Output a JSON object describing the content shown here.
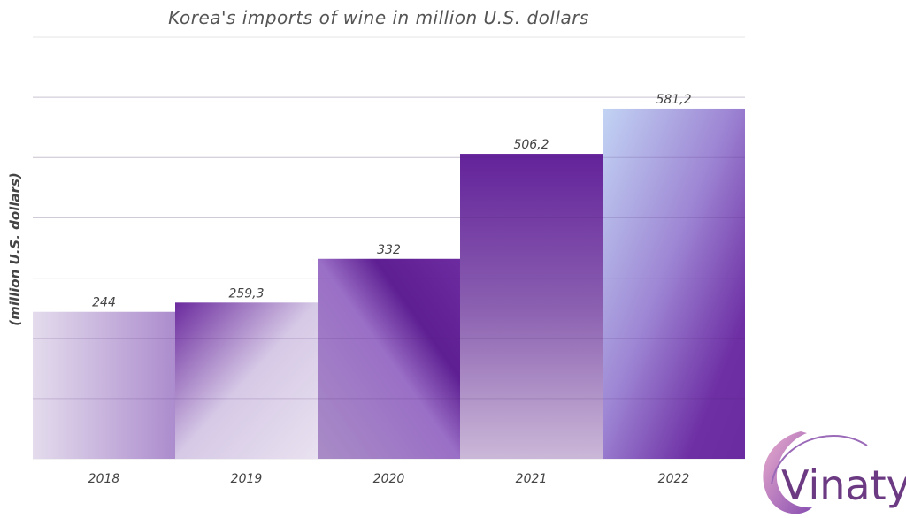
{
  "chart_data": {
    "type": "bar",
    "title": "Korea's imports of wine in million U.S. dollars",
    "ylabel": "(million U.S. dollars)",
    "xlabel": "",
    "categories": [
      "2018",
      "2019",
      "2020",
      "2021",
      "2022"
    ],
    "values": [
      244,
      259.3,
      332,
      506.2,
      581.2
    ],
    "value_labels": [
      "244",
      "259,3",
      "332",
      "506,2",
      "581,2"
    ],
    "ylim": [
      0,
      700
    ],
    "grid": true,
    "legend": "none"
  },
  "logo": {
    "text": "Vinaty"
  },
  "colors": {
    "purple_dark": "#5f1f94",
    "purple_mid": "#9b6ac4",
    "lavender": "#e0d7ec",
    "light_blue": "#bcd2f2"
  }
}
